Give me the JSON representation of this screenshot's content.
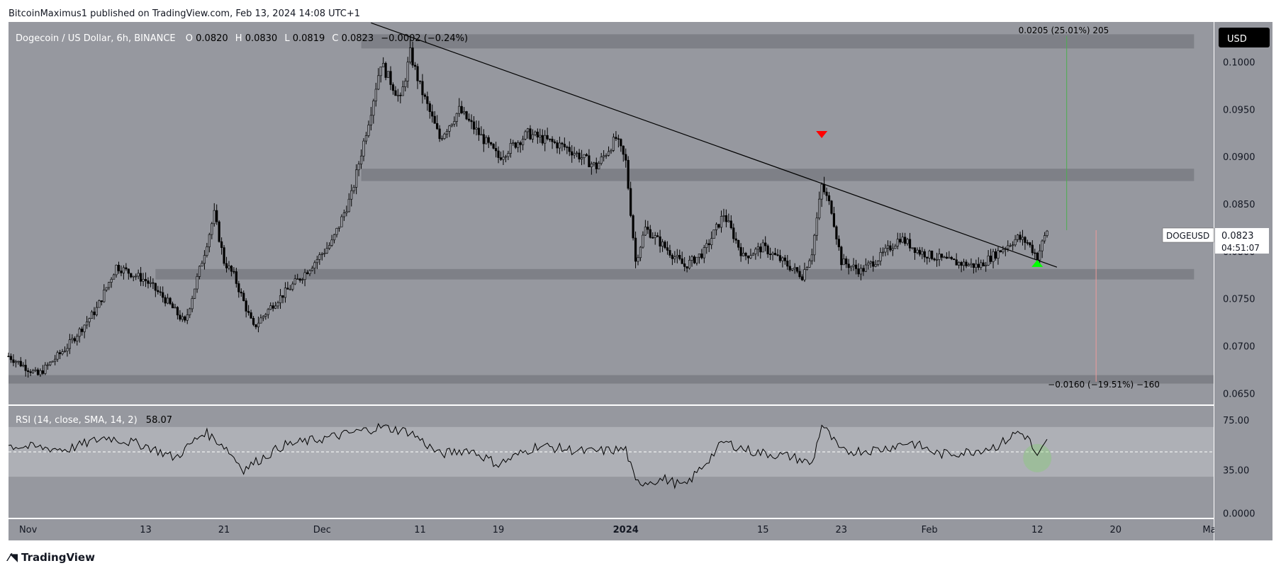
{
  "header": {
    "publish_line": "BitcoinMaximus1 published on TradingView.com, Feb 13, 2024 14:08 UTC+1"
  },
  "footer": {
    "brand": "TradingView"
  },
  "colors": {
    "background": "#ffffff",
    "main_pane": "#96989f",
    "rsi_pane": "#96989f",
    "rsi_band": "#aeb0b6",
    "zone": "#7e8087",
    "candle": "#000000",
    "bull_marker": "#00ff00",
    "bear_marker": "#ff0000",
    "projection_up": "#4caf50",
    "projection_down": "#ef9a9a"
  },
  "chart_data": {
    "type": "candlestick",
    "symbol_title": "Dogecoin / US Dollar, 6h, BINANCE",
    "ohlc": {
      "o_label": "O",
      "o_value": "0.0820",
      "h_label": "H",
      "h_value": "0.0830",
      "l_label": "L",
      "l_value": "0.0819",
      "c_label": "C",
      "c_value": "0.0823",
      "change": "−0.0002 (−0.24%)"
    },
    "currency_button": "USD",
    "price_label": {
      "symbol": "DOGEUSD",
      "value": "0.0823",
      "countdown": "04:51:07"
    },
    "y_axis_ticks": [
      "0.1000",
      "0.0950",
      "0.0900",
      "0.0850",
      "0.0800",
      "0.0750",
      "0.0700",
      "0.0650"
    ],
    "y_axis_values": [
      0.1,
      0.095,
      0.09,
      0.085,
      0.08,
      0.075,
      0.07,
      0.065
    ],
    "ylim": [
      0.0639,
      0.1043
    ],
    "x_axis_ticks": [
      "Nov",
      "13",
      "21",
      "Dec",
      "11",
      "19",
      "2024",
      "15",
      "23",
      "Feb",
      "12",
      "20",
      "Ma"
    ],
    "x_axis_dates": [
      "2023-11-01",
      "2023-11-13",
      "2023-11-21",
      "2023-12-01",
      "2023-12-11",
      "2023-12-19",
      "2024-01-01",
      "2024-01-15",
      "2024-01-23",
      "2024-02-01",
      "2024-02-12",
      "2024-02-20",
      "2024-03-01"
    ],
    "xlim": [
      "2023-10-30",
      "2024-03-01"
    ],
    "zones": [
      {
        "from": 0.1015,
        "to": 0.103,
        "start": "2023-12-05",
        "end": "2024-02-28"
      },
      {
        "from": 0.0875,
        "to": 0.0888,
        "start": "2023-12-05",
        "end": "2024-02-28"
      },
      {
        "from": 0.0771,
        "to": 0.0782,
        "start": "2023-11-14",
        "end": "2024-02-28"
      },
      {
        "from": 0.0661,
        "to": 0.067,
        "start": "2023-10-30",
        "end": "2024-03-01"
      }
    ],
    "trendline": [
      {
        "date": "2023-12-06",
        "price": 0.1042
      },
      {
        "date": "2024-02-14",
        "price": 0.0784
      }
    ],
    "markers": [
      {
        "type": "bearish",
        "date": "2024-01-21",
        "price": 0.0924
      },
      {
        "type": "bullish",
        "date": "2024-02-12",
        "price": 0.0788
      }
    ],
    "projections": [
      {
        "label": "0.0205 (25.01%) 205",
        "date": "2024-02-15",
        "from": 0.0823,
        "to": 0.1028
      },
      {
        "label": "−0.0160 (−19.51%) −160",
        "date": "2024-02-18",
        "from": 0.0823,
        "to": 0.0663
      }
    ],
    "price_path": [
      {
        "date": "2023-10-30",
        "price": 0.069
      },
      {
        "date": "2023-11-02",
        "price": 0.067
      },
      {
        "date": "2023-11-05",
        "price": 0.07
      },
      {
        "date": "2023-11-08",
        "price": 0.074
      },
      {
        "date": "2023-11-10",
        "price": 0.0785
      },
      {
        "date": "2023-11-13",
        "price": 0.077
      },
      {
        "date": "2023-11-15",
        "price": 0.075
      },
      {
        "date": "2023-11-17",
        "price": 0.0725
      },
      {
        "date": "2023-11-19",
        "price": 0.08
      },
      {
        "date": "2023-11-20",
        "price": 0.084
      },
      {
        "date": "2023-11-21",
        "price": 0.079
      },
      {
        "date": "2023-11-22",
        "price": 0.0775
      },
      {
        "date": "2023-11-24",
        "price": 0.072
      },
      {
        "date": "2023-11-26",
        "price": 0.0745
      },
      {
        "date": "2023-11-29",
        "price": 0.0775
      },
      {
        "date": "2023-12-02",
        "price": 0.081
      },
      {
        "date": "2023-12-04",
        "price": 0.086
      },
      {
        "date": "2023-12-06",
        "price": 0.095
      },
      {
        "date": "2023-12-07",
        "price": 0.1
      },
      {
        "date": "2023-12-09",
        "price": 0.096
      },
      {
        "date": "2023-12-10",
        "price": 0.101
      },
      {
        "date": "2023-12-11",
        "price": 0.0975
      },
      {
        "date": "2023-12-13",
        "price": 0.092
      },
      {
        "date": "2023-12-15",
        "price": 0.095
      },
      {
        "date": "2023-12-17",
        "price": 0.0925
      },
      {
        "date": "2023-12-19",
        "price": 0.09
      },
      {
        "date": "2023-12-22",
        "price": 0.0925
      },
      {
        "date": "2023-12-26",
        "price": 0.091
      },
      {
        "date": "2023-12-29",
        "price": 0.089
      },
      {
        "date": "2023-12-31",
        "price": 0.092
      },
      {
        "date": "2024-01-01",
        "price": 0.0895
      },
      {
        "date": "2024-01-02",
        "price": 0.079
      },
      {
        "date": "2024-01-03",
        "price": 0.0825
      },
      {
        "date": "2024-01-05",
        "price": 0.0805
      },
      {
        "date": "2024-01-07",
        "price": 0.0785
      },
      {
        "date": "2024-01-09",
        "price": 0.08
      },
      {
        "date": "2024-01-11",
        "price": 0.084
      },
      {
        "date": "2024-01-13",
        "price": 0.0795
      },
      {
        "date": "2024-01-15",
        "price": 0.0805
      },
      {
        "date": "2024-01-17",
        "price": 0.079
      },
      {
        "date": "2024-01-19",
        "price": 0.0775
      },
      {
        "date": "2024-01-20",
        "price": 0.08
      },
      {
        "date": "2024-01-21",
        "price": 0.087
      },
      {
        "date": "2024-01-22",
        "price": 0.0845
      },
      {
        "date": "2024-01-23",
        "price": 0.079
      },
      {
        "date": "2024-01-25",
        "price": 0.078
      },
      {
        "date": "2024-01-27",
        "price": 0.0795
      },
      {
        "date": "2024-01-29",
        "price": 0.0815
      },
      {
        "date": "2024-01-31",
        "price": 0.08
      },
      {
        "date": "2024-02-03",
        "price": 0.079
      },
      {
        "date": "2024-02-06",
        "price": 0.0785
      },
      {
        "date": "2024-02-08",
        "price": 0.08
      },
      {
        "date": "2024-02-10",
        "price": 0.0815
      },
      {
        "date": "2024-02-11",
        "price": 0.081
      },
      {
        "date": "2024-02-12",
        "price": 0.0795
      },
      {
        "date": "2024-02-13",
        "price": 0.0823
      }
    ],
    "rsi": {
      "title": "RSI (14, close, SMA, 14, 2)",
      "value_label": "58.07",
      "ticks": [
        "75.00",
        "35.00",
        "0.0000"
      ],
      "tick_values": [
        75,
        35,
        0
      ],
      "ylim": [
        -3,
        87
      ],
      "band": [
        30,
        70
      ],
      "midline": 50,
      "path": [
        {
          "date": "2023-10-30",
          "value": 55
        },
        {
          "date": "2023-11-05",
          "value": 52
        },
        {
          "date": "2023-11-09",
          "value": 62
        },
        {
          "date": "2023-11-13",
          "value": 55
        },
        {
          "date": "2023-11-16",
          "value": 45
        },
        {
          "date": "2023-11-19",
          "value": 66
        },
        {
          "date": "2023-11-21",
          "value": 55
        },
        {
          "date": "2023-11-23",
          "value": 36
        },
        {
          "date": "2023-11-27",
          "value": 55
        },
        {
          "date": "2023-12-02",
          "value": 62
        },
        {
          "date": "2023-12-07",
          "value": 70
        },
        {
          "date": "2023-12-10",
          "value": 66
        },
        {
          "date": "2023-12-13",
          "value": 48
        },
        {
          "date": "2023-12-16",
          "value": 52
        },
        {
          "date": "2023-12-19",
          "value": 40
        },
        {
          "date": "2023-12-23",
          "value": 55
        },
        {
          "date": "2023-12-28",
          "value": 50
        },
        {
          "date": "2024-01-01",
          "value": 52
        },
        {
          "date": "2024-01-02",
          "value": 25
        },
        {
          "date": "2024-01-05",
          "value": 28
        },
        {
          "date": "2024-01-07",
          "value": 22
        },
        {
          "date": "2024-01-09",
          "value": 40
        },
        {
          "date": "2024-01-11",
          "value": 58
        },
        {
          "date": "2024-01-14",
          "value": 50
        },
        {
          "date": "2024-01-18",
          "value": 46
        },
        {
          "date": "2024-01-20",
          "value": 40
        },
        {
          "date": "2024-01-21",
          "value": 72
        },
        {
          "date": "2024-01-23",
          "value": 50
        },
        {
          "date": "2024-01-27",
          "value": 52
        },
        {
          "date": "2024-01-30",
          "value": 58
        },
        {
          "date": "2024-02-02",
          "value": 48
        },
        {
          "date": "2024-02-05",
          "value": 50
        },
        {
          "date": "2024-02-08",
          "value": 55
        },
        {
          "date": "2024-02-10",
          "value": 66
        },
        {
          "date": "2024-02-11",
          "value": 62
        },
        {
          "date": "2024-02-12",
          "value": 45
        },
        {
          "date": "2024-02-13",
          "value": 58
        }
      ]
    }
  }
}
